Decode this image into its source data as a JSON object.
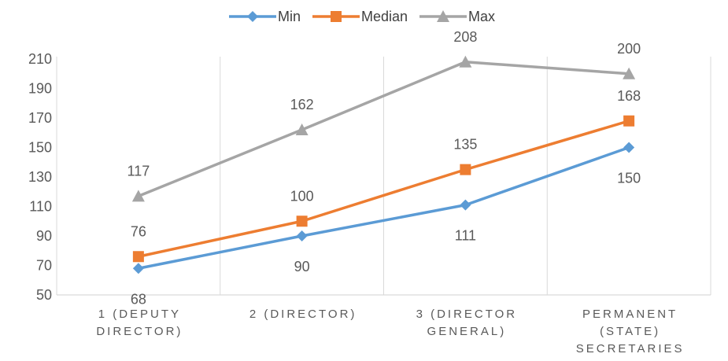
{
  "chart_data": {
    "type": "line",
    "title": "",
    "xlabel": "",
    "ylabel": "",
    "categories": [
      [
        "1 (DEPUTY",
        "DIRECTOR)"
      ],
      [
        "2 (DIRECTOR)"
      ],
      [
        "3 (DIRECTOR",
        "GENERAL)"
      ],
      [
        "PERMANENT",
        "(STATE)",
        "SECRETARIES"
      ]
    ],
    "ylim": [
      50,
      210
    ],
    "yticks": [
      50,
      70,
      90,
      110,
      130,
      150,
      170,
      190,
      210
    ],
    "grid": "vertical",
    "legend_position": "top",
    "series": [
      {
        "name": "Min",
        "values": [
          68,
          90,
          111,
          150
        ],
        "color": "#5B9BD5",
        "marker": "diamond",
        "label_position": "below"
      },
      {
        "name": "Median",
        "values": [
          76,
          100,
          135,
          168
        ],
        "color": "#ED7D31",
        "marker": "square",
        "label_position": "above"
      },
      {
        "name": "Max",
        "values": [
          117,
          162,
          208,
          200
        ],
        "color": "#A5A5A5",
        "marker": "triangle",
        "label_position": "above"
      }
    ]
  }
}
